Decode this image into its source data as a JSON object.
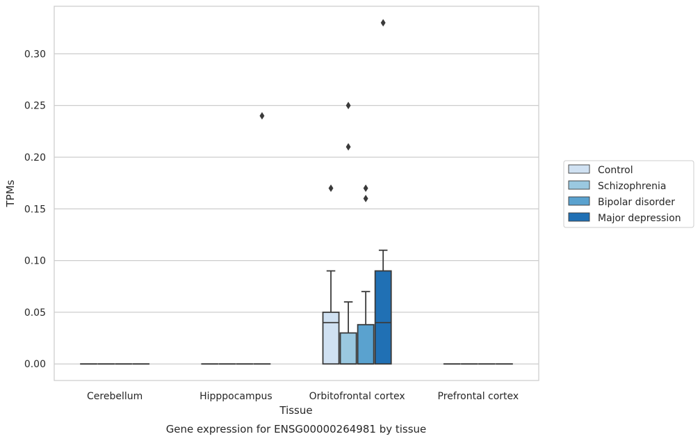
{
  "chart_data": {
    "type": "box",
    "title": "",
    "caption": "Gene expression for ENSG00000264981 by tissue",
    "xlabel": "Tissue",
    "ylabel": "TPMs",
    "ylim": [
      -0.016,
      0.346
    ],
    "yticks": [
      "0.00",
      "0.05",
      "0.10",
      "0.15",
      "0.20",
      "0.25",
      "0.30"
    ],
    "grid": "horizontal",
    "legend_position": "right",
    "categories": [
      "Cerebellum",
      "Hipppocampus",
      "Orbitofrontal cortex",
      "Prefrontal cortex"
    ],
    "series": [
      {
        "name": "Control",
        "color": "#d0e1f2",
        "boxes": [
          {
            "category": "Cerebellum",
            "min": 0,
            "q1": 0,
            "median": 0,
            "q3": 0,
            "max": 0,
            "outliers": []
          },
          {
            "category": "Hipppocampus",
            "min": 0,
            "q1": 0,
            "median": 0,
            "q3": 0,
            "max": 0,
            "outliers": []
          },
          {
            "category": "Orbitofrontal cortex",
            "min": 0,
            "q1": 0,
            "median": 0.04,
            "q3": 0.05,
            "max": 0.09,
            "outliers": [
              0.17
            ]
          },
          {
            "category": "Prefrontal cortex",
            "min": 0,
            "q1": 0,
            "median": 0,
            "q3": 0,
            "max": 0,
            "outliers": []
          }
        ]
      },
      {
        "name": "Schizophrenia",
        "color": "#9ac8e0",
        "boxes": [
          {
            "category": "Cerebellum",
            "min": 0,
            "q1": 0,
            "median": 0,
            "q3": 0,
            "max": 0,
            "outliers": []
          },
          {
            "category": "Hipppocampus",
            "min": 0,
            "q1": 0,
            "median": 0,
            "q3": 0,
            "max": 0,
            "outliers": []
          },
          {
            "category": "Orbitofrontal cortex",
            "min": 0,
            "q1": 0,
            "median": 0.0,
            "q3": 0.03,
            "max": 0.06,
            "outliers": [
              0.21,
              0.25
            ]
          },
          {
            "category": "Prefrontal cortex",
            "min": 0,
            "q1": 0,
            "median": 0,
            "q3": 0,
            "max": 0,
            "outliers": []
          }
        ]
      },
      {
        "name": "Bipolar disorder",
        "color": "#5aa2cf",
        "boxes": [
          {
            "category": "Cerebellum",
            "min": 0,
            "q1": 0,
            "median": 0,
            "q3": 0,
            "max": 0,
            "outliers": []
          },
          {
            "category": "Hipppocampus",
            "min": 0,
            "q1": 0,
            "median": 0,
            "q3": 0,
            "max": 0,
            "outliers": []
          },
          {
            "category": "Orbitofrontal cortex",
            "min": 0,
            "q1": 0,
            "median": 0.0,
            "q3": 0.038,
            "max": 0.07,
            "outliers": [
              0.16,
              0.17
            ]
          },
          {
            "category": "Prefrontal cortex",
            "min": 0,
            "q1": 0,
            "median": 0,
            "q3": 0,
            "max": 0,
            "outliers": []
          }
        ]
      },
      {
        "name": "Major depression",
        "color": "#2070b4",
        "boxes": [
          {
            "category": "Cerebellum",
            "min": 0,
            "q1": 0,
            "median": 0,
            "q3": 0,
            "max": 0,
            "outliers": []
          },
          {
            "category": "Hipppocampus",
            "min": 0,
            "q1": 0,
            "median": 0,
            "q3": 0,
            "max": 0,
            "outliers": [
              0.24
            ]
          },
          {
            "category": "Orbitofrontal cortex",
            "min": 0,
            "q1": 0,
            "median": 0.04,
            "q3": 0.09,
            "max": 0.11,
            "outliers": [
              0.33
            ]
          },
          {
            "category": "Prefrontal cortex",
            "min": 0,
            "q1": 0,
            "median": 0,
            "q3": 0,
            "max": 0,
            "outliers": []
          }
        ]
      }
    ]
  }
}
